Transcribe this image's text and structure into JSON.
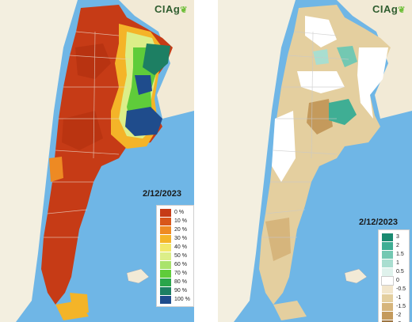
{
  "left_panel": {
    "logo": "CIAg",
    "date": "2/12/2023",
    "legend": [
      {
        "label": "0 %",
        "color": "#c63b16"
      },
      {
        "label": "10 %",
        "color": "#d8561a"
      },
      {
        "label": "20 %",
        "color": "#ee8a23"
      },
      {
        "label": "30 %",
        "color": "#f4b428"
      },
      {
        "label": "40 %",
        "color": "#f2e86a"
      },
      {
        "label": "50 %",
        "color": "#dcee88"
      },
      {
        "label": "60 %",
        "color": "#a9e36b"
      },
      {
        "label": "70 %",
        "color": "#5fcc3a"
      },
      {
        "label": "80 %",
        "color": "#2aa54a"
      },
      {
        "label": "90 %",
        "color": "#1d7f63"
      },
      {
        "label": "100 %",
        "color": "#1f4c8c"
      }
    ]
  },
  "right_panel": {
    "logo": "CIAg",
    "date": "2/12/2023",
    "legend": [
      {
        "label": "3",
        "color": "#1a8a70"
      },
      {
        "label": "2",
        "color": "#3fae94"
      },
      {
        "label": "1.5",
        "color": "#73c8b2"
      },
      {
        "label": "1",
        "color": "#a9ded0"
      },
      {
        "label": "0.5",
        "color": "#dff2ec"
      },
      {
        "label": "0",
        "color": "#ffffff"
      },
      {
        "label": "-0.5",
        "color": "#f2e6cc"
      },
      {
        "label": "-1",
        "color": "#e4cf9f"
      },
      {
        "label": "-1.5",
        "color": "#d6b57c"
      },
      {
        "label": "-2",
        "color": "#c49a5c"
      },
      {
        "label": "-3",
        "color": "#9c7440"
      }
    ]
  }
}
